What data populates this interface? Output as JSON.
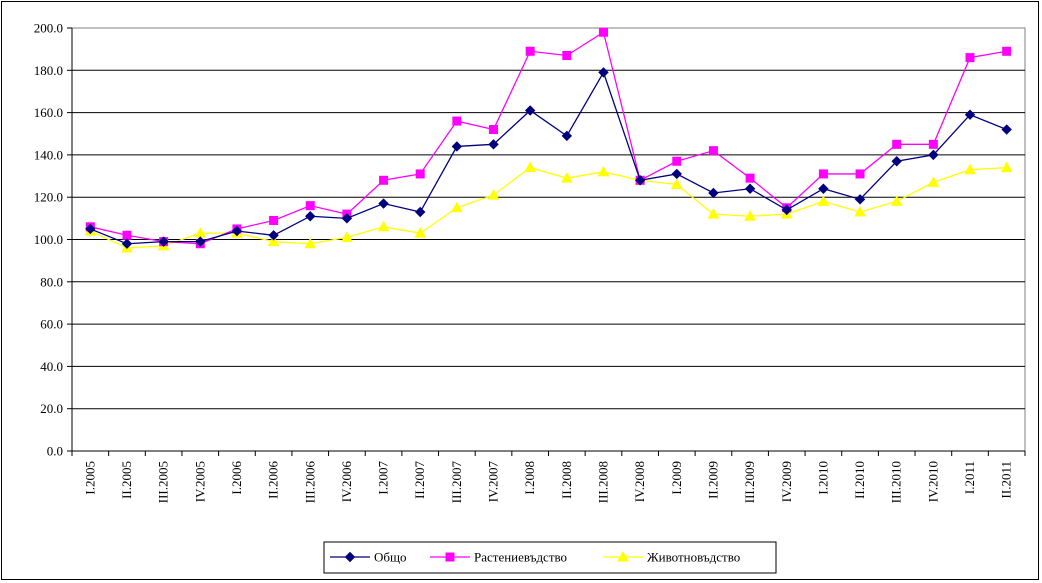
{
  "chart_data": {
    "type": "line",
    "title": "",
    "xlabel": "",
    "ylabel": "",
    "ylim": [
      0,
      200
    ],
    "ytick_step": 20,
    "ytick_labels": [
      "0.0",
      "20.0",
      "40.0",
      "60.0",
      "80.0",
      "100.0",
      "120.0",
      "140.0",
      "160.0",
      "180.0",
      "200.0"
    ],
    "grid": "horizontal",
    "legend_position": "bottom",
    "categories": [
      "I.2005",
      "II.2005",
      "III.2005",
      "IV.2005",
      "I.2006",
      "II.2006",
      "III.2006",
      "IV.2006",
      "I.2007",
      "II.2007",
      "III.2007",
      "IV.2007",
      "I.2008",
      "II.2008",
      "III.2008",
      "IV.2008",
      "I.2009",
      "II.2009",
      "III.2009",
      "IV.2009",
      "I.2010",
      "II.2010",
      "III.2010",
      "IV.2010",
      "I.2011",
      "II.2011"
    ],
    "series": [
      {
        "name": "Общо",
        "color": "#00007f",
        "marker": "diamond",
        "values": [
          105,
          98,
          99,
          99,
          104,
          102,
          111,
          110,
          117,
          113,
          144,
          145,
          161,
          149,
          179,
          128,
          131,
          122,
          124,
          114,
          124,
          119,
          137,
          140,
          159,
          152
        ]
      },
      {
        "name": "Растениевъдство",
        "color": "#ff00ff",
        "marker": "square",
        "values": [
          106,
          102,
          99,
          98,
          105,
          109,
          116,
          112,
          128,
          131,
          156,
          152,
          189,
          187,
          198,
          128,
          137,
          142,
          129,
          115,
          131,
          131,
          145,
          145,
          186,
          189
        ]
      },
      {
        "name": "Животновъдство",
        "color": "#ffff00",
        "marker": "triangle",
        "values": [
          104,
          96,
          97,
          103,
          103,
          99,
          98,
          101,
          106,
          103,
          115,
          121,
          134,
          129,
          132,
          128,
          126,
          112,
          111,
          112,
          118,
          113,
          118,
          127,
          133,
          134
        ]
      }
    ]
  }
}
